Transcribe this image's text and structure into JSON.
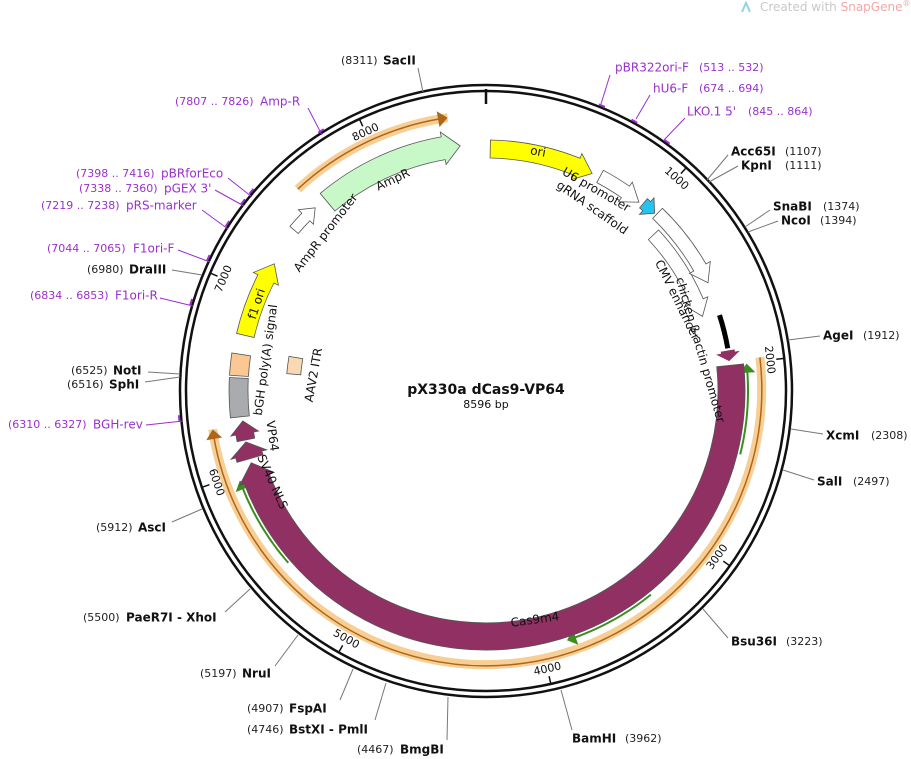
{
  "watermark": {
    "prefix": "Created with",
    "brand": "SnapGene",
    "mark": "®"
  },
  "title": "pX330a dCas9-VP64",
  "length": "8596 bp",
  "ticks": [
    "1000",
    "2000",
    "3000",
    "4000",
    "5000",
    "6000",
    "7000",
    "8000"
  ],
  "sites": [
    {
      "position": "(8311)",
      "name": "SacII"
    },
    {
      "position": "(1107)",
      "name": "Acc65I"
    },
    {
      "position": "(1111)",
      "name": "KpnI"
    },
    {
      "position": "(1374)",
      "name": "SnaBI"
    },
    {
      "position": "(1394)",
      "name": "NcoI"
    },
    {
      "position": "(1912)",
      "name": "AgeI"
    },
    {
      "position": "(2308)",
      "name": "XcmI"
    },
    {
      "position": "(2497)",
      "name": "SalI"
    },
    {
      "position": "(3223)",
      "name": "Bsu36I"
    },
    {
      "position": "(3962)",
      "name": "BamHI"
    },
    {
      "position": "(4467)",
      "name": "BmgBI"
    },
    {
      "position": "(4746)",
      "name": "BstXI - PmlI"
    },
    {
      "position": "(4907)",
      "name": "FspAI"
    },
    {
      "position": "(5197)",
      "name": "NruI"
    },
    {
      "position": "(5500)",
      "name": "PaeR7I - XhoI"
    },
    {
      "position": "(5912)",
      "name": "AscI"
    },
    {
      "position": "(6516)",
      "name": "SphI"
    },
    {
      "position": "(6525)",
      "name": "NotI"
    },
    {
      "position": "(6980)",
      "name": "DraIII"
    }
  ],
  "primers": [
    {
      "range": "(513 .. 532)",
      "name": "pBR322ori-F"
    },
    {
      "range": "(674 .. 694)",
      "name": "hU6-F"
    },
    {
      "range": "(845 .. 864)",
      "name": "LKO.1 5'"
    },
    {
      "range": "(7807 .. 7826)",
      "name": "Amp-R"
    },
    {
      "range": "(7398 .. 7416)",
      "name": "pBRforEco"
    },
    {
      "range": "(7338 .. 7360)",
      "name": "pGEX 3'"
    },
    {
      "range": "(7219 .. 7238)",
      "name": "pRS-marker"
    },
    {
      "range": "(7044 .. 7065)",
      "name": "F1ori-F"
    },
    {
      "range": "(6834 .. 6853)",
      "name": "F1ori-R"
    },
    {
      "range": "(6310 .. 6327)",
      "name": "BGH-rev"
    }
  ],
  "features": [
    "ori",
    "U6 promoter",
    "gRNA scaffold",
    "chicken β-actin promoter",
    "CMV enhancer",
    "Cas9m4",
    "SV40 NLS",
    "VP64",
    "bGH poly(A) signal",
    "AAV2 ITR",
    "f1 ori",
    "AmpR",
    "AmpR promoter"
  ]
}
